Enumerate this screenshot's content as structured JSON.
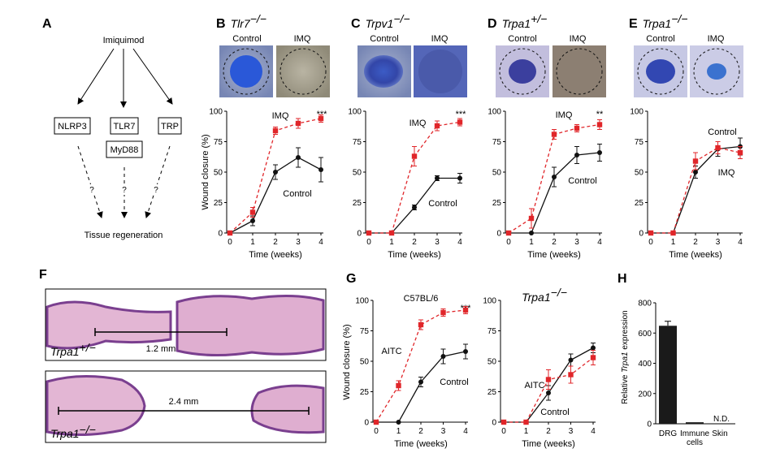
{
  "colors": {
    "control": "#111111",
    "treated": "#e0262a",
    "bar": "#1a1a1a",
    "he_pink": "#d9a2c9",
    "he_purple": "#7a4a99"
  },
  "panels": {
    "A": {
      "label": "A",
      "top_node": "Imiquimod",
      "nodes": [
        "NLRP3",
        "TLR7",
        "MyD88",
        "TRP"
      ],
      "question": "?",
      "bottom_node": "Tissue regeneration"
    },
    "B": {
      "label": "B",
      "genotype": "Tlr7",
      "sup": "−/−",
      "img_left": "Control",
      "img_right": "IMQ",
      "treat_label": "IMQ",
      "ctrl_label": "Control",
      "stars": "***"
    },
    "C": {
      "label": "C",
      "genotype": "Trpv1",
      "sup": "−/−",
      "img_left": "Control",
      "img_right": "IMQ",
      "treat_label": "IMQ",
      "ctrl_label": "Control",
      "stars": "***"
    },
    "D": {
      "label": "D",
      "genotype": "Trpa1",
      "sup": "+/−",
      "img_left": "Control",
      "img_right": "IMQ",
      "treat_label": "IMQ",
      "ctrl_label": "Control",
      "stars": "**"
    },
    "E": {
      "label": "E",
      "genotype": "Trpa1",
      "sup": "−/−",
      "img_left": "Control",
      "img_right": "IMQ",
      "treat_label": "IMQ",
      "ctrl_label": "Control",
      "stars": ""
    },
    "F": {
      "label": "F",
      "top_genotype": "Trpa1",
      "top_sup": "+/−",
      "top_measure": "1.2 mm",
      "bottom_genotype": "Trpa1",
      "bottom_sup": "−/−",
      "bottom_measure": "2.4 mm"
    },
    "G": {
      "label": "G",
      "left_title": "C57BL/6",
      "right_genotype": "Trpa1",
      "right_sup": "−/−",
      "treat_label": "AITC",
      "ctrl_label": "Control",
      "stars": "***"
    },
    "H": {
      "label": "H",
      "nd_label": "N.D."
    }
  },
  "axes": {
    "wound_ylabel": "Wound closure (%)",
    "wound_xlabel": "Time (weeks)",
    "yticks": [
      "0",
      "25",
      "50",
      "75",
      "100"
    ],
    "xticks": [
      "0",
      "1",
      "2",
      "3",
      "4"
    ],
    "h_ylabel_prefix": "Relative ",
    "h_ylabel_gene": "Trpa1",
    "h_ylabel_suffix": " expression",
    "h_yticks": [
      "0",
      "200",
      "400",
      "600",
      "800"
    ],
    "h_categories": [
      "DRG",
      "Immune",
      "cells",
      "Skin"
    ]
  },
  "chart_data": [
    {
      "type": "line",
      "panel": "B",
      "x": [
        0,
        1,
        2,
        3,
        4
      ],
      "ylim": [
        0,
        100
      ],
      "xlabel": "Time (weeks)",
      "ylabel": "Wound closure (%)",
      "series": [
        {
          "name": "Control",
          "values": [
            0,
            10,
            50,
            62,
            52
          ],
          "err": [
            0,
            4,
            6,
            8,
            10
          ]
        },
        {
          "name": "IMQ",
          "values": [
            0,
            17,
            84,
            90,
            94
          ],
          "err": [
            0,
            4,
            3,
            4,
            3
          ]
        }
      ]
    },
    {
      "type": "line",
      "panel": "C",
      "x": [
        0,
        1,
        2,
        3,
        4
      ],
      "ylim": [
        0,
        100
      ],
      "xlabel": "Time (weeks)",
      "ylabel": "Wound closure (%)",
      "series": [
        {
          "name": "Control",
          "values": [
            0,
            0,
            21,
            45,
            45
          ],
          "err": [
            0,
            0,
            2,
            2,
            4
          ]
        },
        {
          "name": "IMQ",
          "values": [
            0,
            0,
            63,
            88,
            91
          ],
          "err": [
            0,
            0,
            8,
            4,
            3
          ]
        }
      ]
    },
    {
      "type": "line",
      "panel": "D",
      "x": [
        0,
        1,
        2,
        3,
        4
      ],
      "ylim": [
        0,
        100
      ],
      "xlabel": "Time (weeks)",
      "ylabel": "Wound closure (%)",
      "series": [
        {
          "name": "Control",
          "values": [
            0,
            0,
            46,
            64,
            66
          ],
          "err": [
            0,
            0,
            8,
            7,
            7
          ]
        },
        {
          "name": "IMQ",
          "values": [
            0,
            12,
            81,
            86,
            89
          ],
          "err": [
            0,
            8,
            4,
            3,
            4
          ]
        }
      ]
    },
    {
      "type": "line",
      "panel": "E",
      "x": [
        0,
        1,
        2,
        3,
        4
      ],
      "ylim": [
        0,
        100
      ],
      "xlabel": "Time (weeks)",
      "ylabel": "Wound closure (%)",
      "series": [
        {
          "name": "Control",
          "values": [
            0,
            0,
            50,
            69,
            71
          ],
          "err": [
            0,
            0,
            5,
            6,
            7
          ]
        },
        {
          "name": "IMQ",
          "values": [
            0,
            0,
            59,
            70,
            66
          ],
          "err": [
            0,
            0,
            7,
            5,
            5
          ]
        }
      ]
    },
    {
      "type": "line",
      "panel": "G-left",
      "title": "C57BL/6",
      "x": [
        0,
        1,
        2,
        3,
        4
      ],
      "ylim": [
        0,
        100
      ],
      "xlabel": "Time (weeks)",
      "ylabel": "Wound closure (%)",
      "series": [
        {
          "name": "Control",
          "values": [
            0,
            0,
            33,
            54,
            58
          ],
          "err": [
            0,
            0,
            4,
            6,
            6
          ]
        },
        {
          "name": "AITC",
          "values": [
            0,
            30,
            80,
            90,
            92
          ],
          "err": [
            0,
            4,
            4,
            3,
            3
          ]
        }
      ]
    },
    {
      "type": "line",
      "panel": "G-right",
      "title": "Trpa1−/−",
      "x": [
        0,
        1,
        2,
        3,
        4
      ],
      "ylim": [
        0,
        100
      ],
      "xlabel": "Time (weeks)",
      "ylabel": "",
      "series": [
        {
          "name": "Control",
          "values": [
            0,
            0,
            24,
            51,
            61
          ],
          "err": [
            0,
            0,
            6,
            5,
            4
          ]
        },
        {
          "name": "AITC",
          "values": [
            0,
            0,
            35,
            39,
            53
          ],
          "err": [
            0,
            0,
            8,
            7,
            6
          ]
        }
      ]
    },
    {
      "type": "bar",
      "panel": "H",
      "categories": [
        "DRG",
        "Immune cells",
        "Skin"
      ],
      "values": [
        648,
        10,
        0
      ],
      "err": [
        30,
        0,
        0
      ],
      "ylim": [
        0,
        800
      ],
      "ylabel": "Relative Trpa1 expression",
      "annotations": [
        "N.D."
      ]
    }
  ]
}
